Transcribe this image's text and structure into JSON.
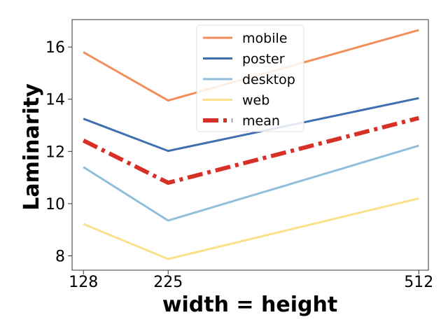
{
  "chart_data": {
    "type": "line",
    "xlabel": "width = height",
    "ylabel": "Laminarity",
    "x": [
      128,
      225,
      512
    ],
    "xlim": [
      115,
      523
    ],
    "ylim": [
      7.45,
      17.05
    ],
    "xticks": [
      128,
      225,
      512
    ],
    "yticks": [
      8,
      10,
      12,
      14,
      16
    ],
    "grid": false,
    "legend_position": "top-center",
    "series": [
      {
        "name": "mobile",
        "values": [
          15.8,
          13.95,
          16.65
        ],
        "color": "#f28e5b",
        "style": "solid"
      },
      {
        "name": "poster",
        "values": [
          13.25,
          12.02,
          14.04
        ],
        "color": "#3e6fb0",
        "style": "solid"
      },
      {
        "name": "desktop",
        "values": [
          11.4,
          9.35,
          12.22
        ],
        "color": "#90bfde",
        "style": "solid"
      },
      {
        "name": "web",
        "values": [
          9.22,
          7.88,
          10.2
        ],
        "color": "#fbe08a",
        "style": "solid"
      },
      {
        "name": "mean",
        "values": [
          12.42,
          10.8,
          13.28
        ],
        "color": "#d73027",
        "style": "dashdot"
      }
    ]
  }
}
